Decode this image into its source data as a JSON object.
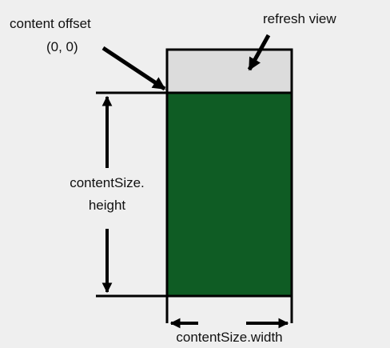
{
  "labels": {
    "content_offset": "content offset",
    "origin": "(0, 0)",
    "refresh_view": "refresh view",
    "content_height_line1": "contentSize.",
    "content_height_line2": "height",
    "content_width": "contentSize.width"
  },
  "colors": {
    "background": "#efefef",
    "content": "#0f5c24",
    "refresh": "#dcdcdc",
    "stroke": "#000000"
  }
}
